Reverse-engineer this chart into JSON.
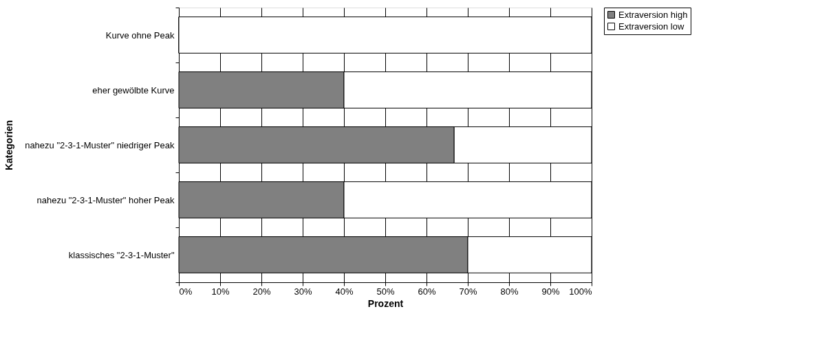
{
  "chart_data": {
    "type": "bar",
    "orientation": "horizontal",
    "stacked": true,
    "xlabel": "Prozent",
    "ylabel": "Kategorien",
    "categories": [
      "Kurve ohne Peak",
      "eher gewölbte Kurve",
      "nahezu \"2-3-1-Muster\" niedriger Peak",
      "nahezu \"2-3-1-Muster\" hoher Peak",
      "klassisches \"2-3-1-Muster\""
    ],
    "series": [
      {
        "name": "Extraversion high",
        "color": "#808080",
        "values": [
          0,
          40,
          66.7,
          40,
          70
        ]
      },
      {
        "name": "Extraversion low",
        "color": "#ffffff",
        "values": [
          100,
          60,
          33.3,
          60,
          30
        ]
      }
    ],
    "xlim": [
      0,
      100
    ],
    "xticks": [
      {
        "value": 0,
        "label": "0%"
      },
      {
        "value": 10,
        "label": "10%"
      },
      {
        "value": 20,
        "label": "20%"
      },
      {
        "value": 30,
        "label": "30%"
      },
      {
        "value": 40,
        "label": "40%"
      },
      {
        "value": 50,
        "label": "50%"
      },
      {
        "value": 60,
        "label": "60%"
      },
      {
        "value": 70,
        "label": "70%"
      },
      {
        "value": 80,
        "label": "80%"
      },
      {
        "value": 90,
        "label": "90%"
      },
      {
        "value": 100,
        "label": "100%"
      }
    ],
    "grid": "x",
    "legend": "right"
  }
}
